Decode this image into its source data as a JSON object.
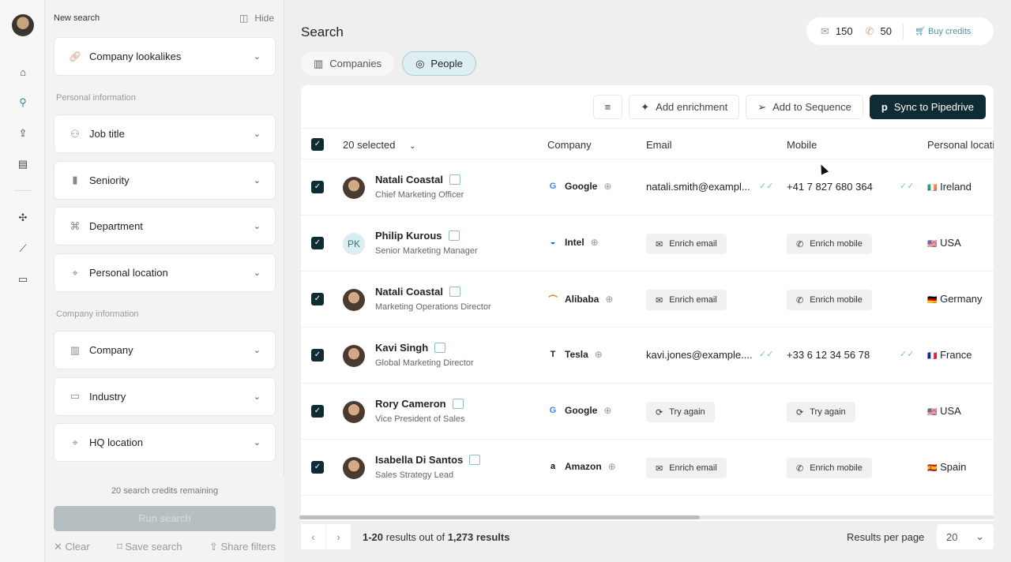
{
  "filters": {
    "new_search": "New search",
    "hide": "Hide",
    "lookalikes": "Company lookalikes",
    "personal_section": "Personal information",
    "personal": [
      {
        "label": "Job title",
        "icon": "user-icon"
      },
      {
        "label": "Seniority",
        "icon": "bar-chart-icon"
      },
      {
        "label": "Department",
        "icon": "org-chart-icon"
      },
      {
        "label": "Personal location",
        "icon": "map-pin-icon"
      }
    ],
    "company_section": "Company information",
    "company": [
      {
        "label": "Company",
        "icon": "building-icon"
      },
      {
        "label": "Industry",
        "icon": "briefcase-icon"
      },
      {
        "label": "HQ location",
        "icon": "map-pin-icon"
      }
    ],
    "credits_remaining": "20 search credits remaining",
    "run": "Run search",
    "clear": "Clear",
    "save": "Save search",
    "share": "Share filters"
  },
  "header": {
    "title": "Search",
    "tabs": [
      {
        "label": "Companies"
      },
      {
        "label": "People",
        "active": true
      }
    ],
    "email_credits": "150",
    "phone_credits": "50",
    "buy": "Buy credits"
  },
  "toolbar": {
    "enrich": "Add enrichment",
    "sequence": "Add to Sequence",
    "sync": "Sync to Pipedrive"
  },
  "table": {
    "selected": "20 selected",
    "columns": [
      "Company",
      "Email",
      "Mobile",
      "Personal locati"
    ],
    "rows": [
      {
        "name": "Natali Coastal",
        "title": "Chief Marketing Officer",
        "company": "Google",
        "email": "natali.smith@exampl...",
        "mobile": "+41 7 827 680 364",
        "location": "Ireland",
        "flag": "🇮🇪"
      },
      {
        "name": "Philip Kurous",
        "initials": "PK",
        "title": "Senior Marketing Manager",
        "company": "Intel",
        "email_btn": "Enrich email",
        "mobile_btn": "Enrich mobile",
        "location": "USA",
        "flag": "🇺🇸"
      },
      {
        "name": "Natali Coastal",
        "title": "Marketing Operations Director",
        "company": "Alibaba",
        "email_btn": "Enrich email",
        "mobile_btn": "Enrich mobile",
        "location": "Germany",
        "flag": "🇩🇪"
      },
      {
        "name": "Kavi Singh",
        "title": "Global Marketing Director",
        "company": "Tesla",
        "email": "kavi.jones@example....",
        "mobile": "+33 6 12 34 56 78",
        "location": "France",
        "flag": "🇫🇷"
      },
      {
        "name": "Rory Cameron",
        "title": "Vice President of Sales",
        "company": "Google",
        "email_btn": "Try again",
        "mobile_btn": "Try again",
        "retry": true,
        "location": "USA",
        "flag": "🇺🇸"
      },
      {
        "name": "Isabella Di Santos",
        "title": "Sales Strategy Lead",
        "company": "Amazon",
        "email_btn": "Enrich email",
        "mobile_btn": "Enrich mobile",
        "location": "Spain",
        "flag": "🇪🇸"
      }
    ]
  },
  "footer": {
    "range": "1-20",
    "middle": " results out of ",
    "total": "1,273 results",
    "per_page_label": "Results per page",
    "per_page": "20"
  },
  "colors": {
    "accent": "#0f2b33",
    "teal": "#4b95a6"
  }
}
